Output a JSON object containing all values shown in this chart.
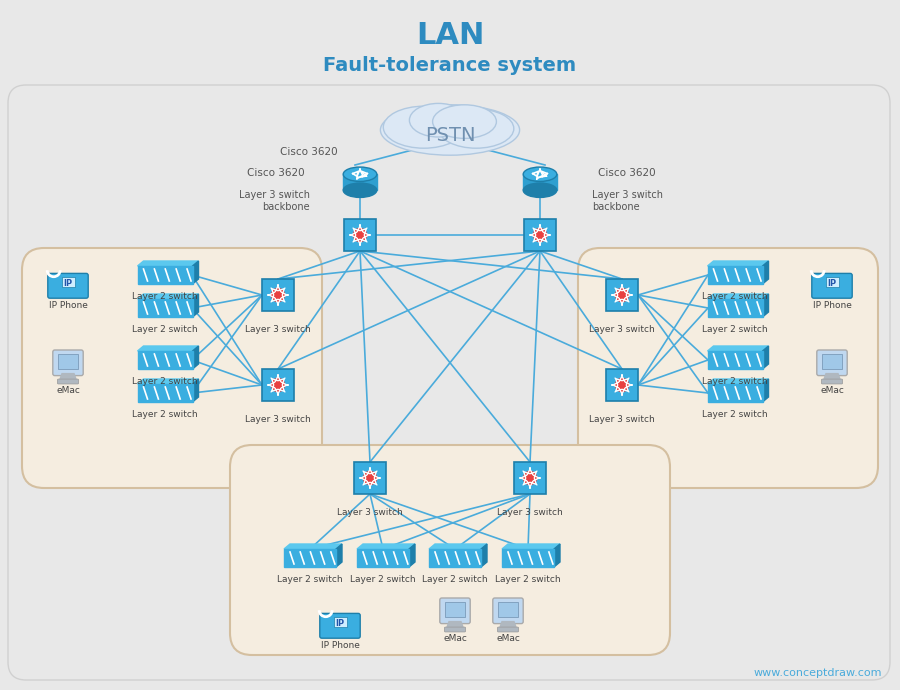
{
  "title": "LAN",
  "subtitle": "Fault-tolerance system",
  "title_color": "#2E8BC0",
  "bg_color": "#f0f0f0",
  "main_bg": "#ffffff",
  "cloud_label": "PSTN",
  "router_label": "Cisco 3620",
  "router_sublabel": "Layer 3 switch\nbackbone",
  "line_color": "#4AABDB",
  "line_color2": "#5BB8E8",
  "box_left_color": "#f5ede0",
  "box_bottom_color": "#f5ede0",
  "box_right_color": "#f5ede0",
  "watermark": "www.conceptdraw.com",
  "watermark_color": "#4AABDB"
}
